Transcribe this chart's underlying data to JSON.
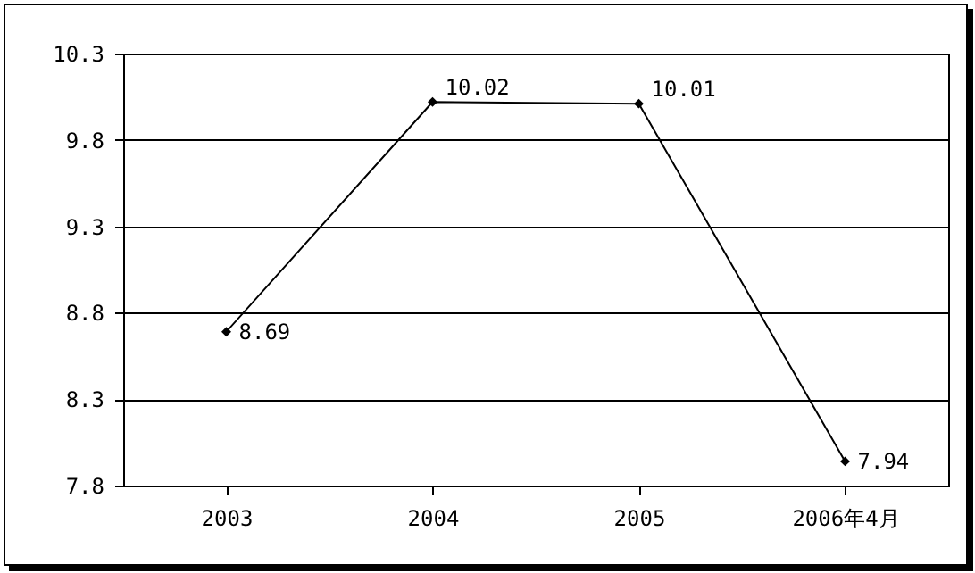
{
  "chart_data": {
    "type": "line",
    "categories": [
      "2003",
      "2004",
      "2005",
      "2006年4月"
    ],
    "values": [
      8.69,
      10.02,
      10.01,
      7.94
    ],
    "color": "#000000",
    "ylim": [
      7.8,
      10.3
    ],
    "yticks": [
      7.8,
      8.3,
      8.8,
      9.3,
      9.8,
      10.3
    ],
    "grid": "y",
    "marker": "diamond",
    "line_style": "solid",
    "data_labels": true
  }
}
